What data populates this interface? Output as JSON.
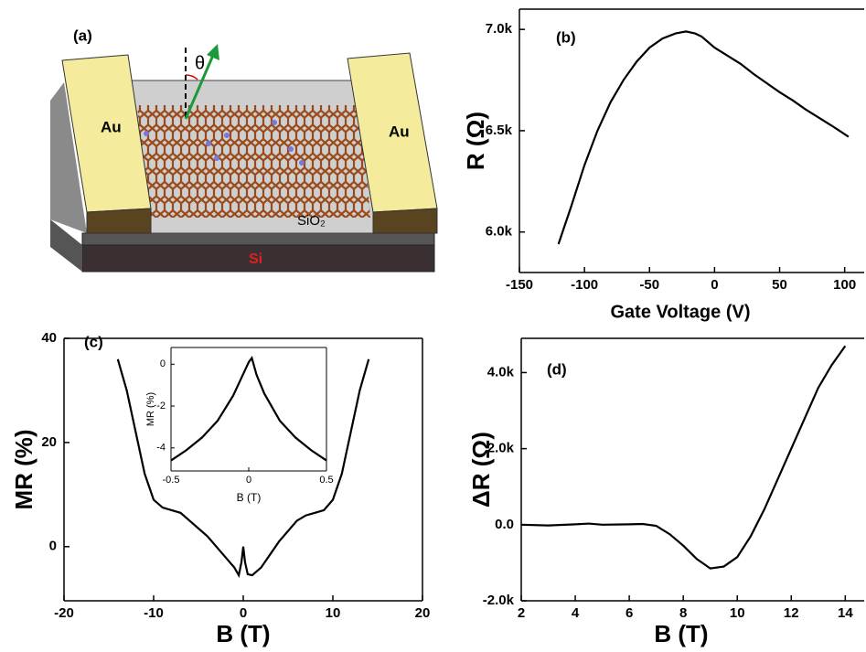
{
  "diagram": {
    "panel_label": "(a)",
    "left_electrode": "Au",
    "right_electrode": "Au",
    "oxide": "SiO₂",
    "substrate": "Si",
    "angle": "θ"
  },
  "chart_data": [
    {
      "type": "line",
      "panel_label": "(b)",
      "xlabel": "Gate Voltage (V)",
      "ylabel": "R (Ω)",
      "color": "#000000",
      "xlim": [
        -150,
        115
      ],
      "ylim": [
        5800,
        7100
      ],
      "xticks": [
        -150,
        -100,
        -50,
        0,
        50,
        100
      ],
      "yticks": [
        {
          "value": 6000,
          "label": "6.0k"
        },
        {
          "value": 6500,
          "label": "6.5k"
        },
        {
          "value": 7000,
          "label": "7.0k"
        }
      ],
      "x": [
        -120,
        -110,
        -100,
        -90,
        -80,
        -70,
        -60,
        -50,
        -40,
        -30,
        -22,
        -15,
        -10,
        0,
        10,
        20,
        30,
        40,
        50,
        60,
        70,
        80,
        90,
        103
      ],
      "values": [
        5940,
        6130,
        6330,
        6500,
        6640,
        6750,
        6840,
        6910,
        6955,
        6980,
        6990,
        6980,
        6965,
        6910,
        6870,
        6830,
        6780,
        6735,
        6690,
        6650,
        6605,
        6565,
        6525,
        6470
      ]
    },
    {
      "type": "line",
      "panel_label": "(c)",
      "xlabel": "B (T)",
      "ylabel": "MR (%)",
      "color": "#000000",
      "xlim": [
        -20,
        20
      ],
      "ylim": [
        -10.4,
        40
      ],
      "xticks": [
        -20,
        -10,
        0,
        10,
        20
      ],
      "yticks": [
        0,
        20,
        40
      ],
      "x": [
        -14,
        -13,
        -12,
        -11,
        -10,
        -9,
        -8,
        -7,
        -6,
        -4,
        -2,
        -1,
        -0.5,
        -0.2,
        0,
        0.2,
        0.5,
        1,
        2,
        4,
        6,
        7,
        8,
        9,
        10,
        11,
        12,
        13,
        14
      ],
      "values": [
        36,
        30,
        22,
        14,
        9,
        7.5,
        7,
        6.5,
        5,
        2,
        -2,
        -4,
        -5.5,
        -3,
        0,
        -3,
        -5.3,
        -5.5,
        -4,
        1,
        5,
        6,
        6.5,
        7,
        9,
        14,
        22,
        30,
        36
      ]
    },
    {
      "type": "line",
      "xlabel": "B (T)",
      "ylabel": "MR (%)",
      "color": "#000000",
      "xlim": [
        -0.5,
        0.5
      ],
      "ylim": [
        -5.1,
        0.8
      ],
      "xticks": [
        -0.5,
        0.0,
        0.5
      ],
      "yticks": [
        -4,
        -2,
        0
      ],
      "x": [
        -0.5,
        -0.4,
        -0.3,
        -0.2,
        -0.1,
        -0.05,
        0,
        0.02,
        0.05,
        0.1,
        0.2,
        0.3,
        0.4,
        0.5
      ],
      "values": [
        -4.6,
        -4.1,
        -3.5,
        -2.7,
        -1.5,
        -0.7,
        0.1,
        0.3,
        -0.5,
        -1.4,
        -2.7,
        -3.5,
        -4.1,
        -4.6
      ]
    },
    {
      "type": "line",
      "panel_label": "(d)",
      "xlabel": "B (T)",
      "ylabel": "ΔR (Ω)",
      "color": "#000000",
      "xlim": [
        2,
        14.7
      ],
      "ylim": [
        -2000,
        4900
      ],
      "xticks": [
        2,
        4,
        6,
        8,
        10,
        12,
        14
      ],
      "yticks": [
        {
          "value": -2000,
          "label": "-2.0k"
        },
        {
          "value": 0,
          "label": "0.0"
        },
        {
          "value": 2000,
          "label": "2.0k"
        },
        {
          "value": 4000,
          "label": "4.0k"
        }
      ],
      "x": [
        2,
        3,
        4,
        4.5,
        5,
        6,
        6.5,
        7,
        7.5,
        8,
        8.5,
        9,
        9.5,
        10,
        10.5,
        11,
        11.5,
        12,
        12.5,
        13,
        13.5,
        14
      ],
      "values": [
        0,
        -20,
        10,
        30,
        0,
        10,
        20,
        -30,
        -250,
        -550,
        -900,
        -1150,
        -1100,
        -850,
        -300,
        400,
        1200,
        2000,
        2800,
        3600,
        4200,
        4700
      ]
    }
  ]
}
